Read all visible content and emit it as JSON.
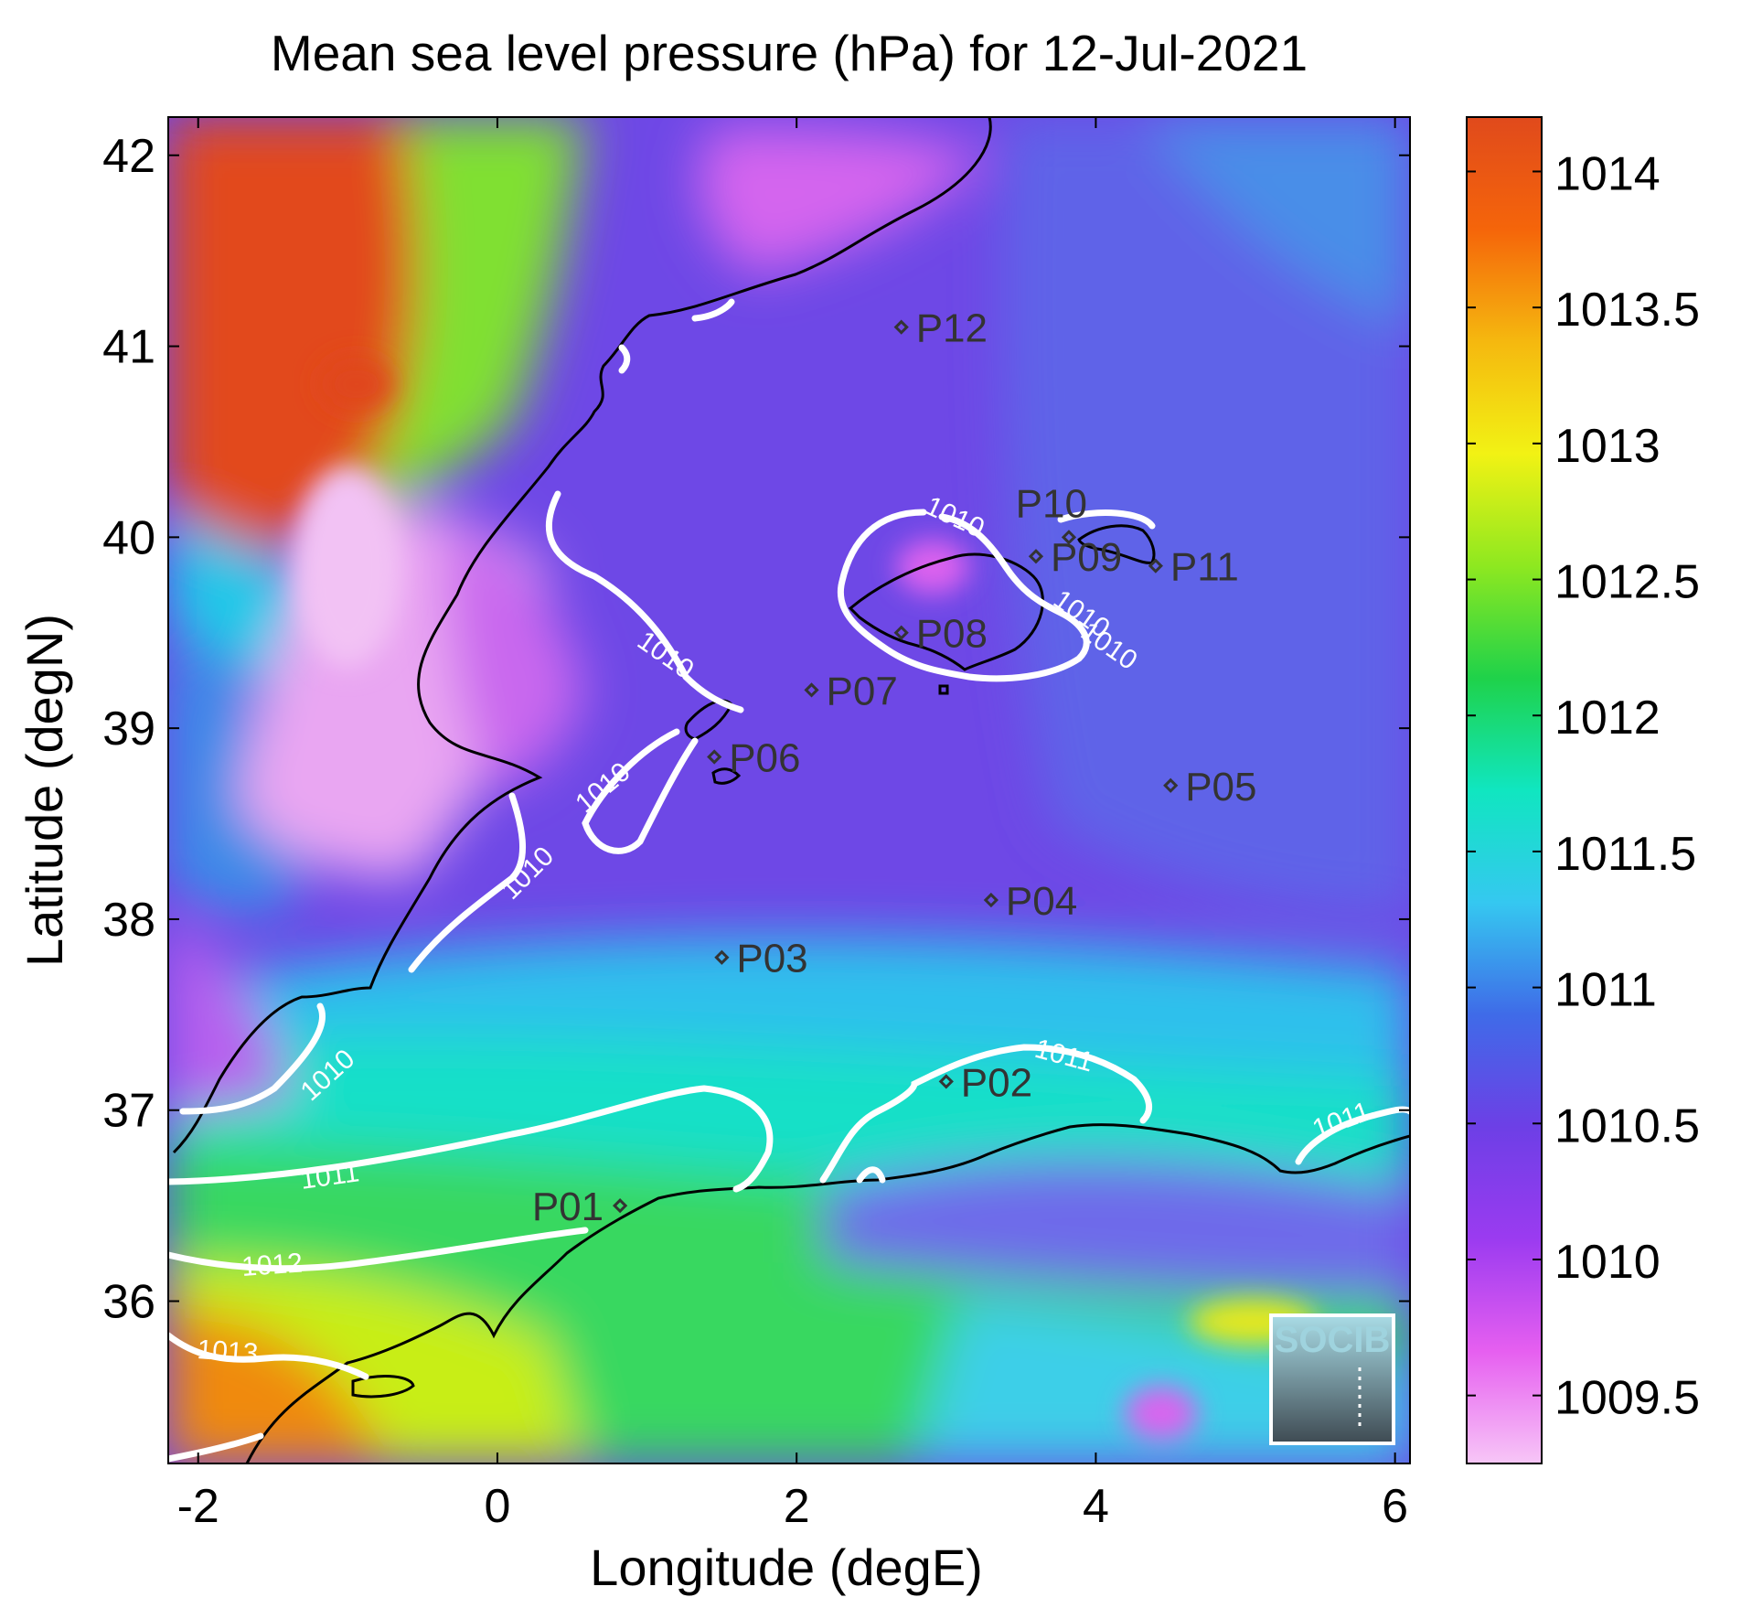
{
  "title": "Mean sea level pressure (hPa) for 12-Jul-2021",
  "axes": {
    "xlabel": "Longitude (degE)",
    "ylabel": "Latitude (degN)",
    "xlim": [
      -2.2,
      6.1
    ],
    "ylim": [
      35.15,
      42.2
    ],
    "xticks": [
      "-2",
      "0",
      "2",
      "4",
      "6"
    ],
    "yticks": [
      "42",
      "41",
      "40",
      "39",
      "38",
      "37",
      "36"
    ]
  },
  "colorbar": {
    "range": [
      1009.25,
      1014.2
    ],
    "ticks": [
      "1014",
      "1013.5",
      "1013",
      "1012.5",
      "1012",
      "1011.5",
      "1011",
      "1010.5",
      "1010",
      "1009.5"
    ],
    "colors": [
      "#f7c6f7",
      "#e65ff0",
      "#9b3bf0",
      "#6d3fe6",
      "#3f6be8",
      "#35c8f0",
      "#10e6c0",
      "#1fd24a",
      "#8ee820",
      "#f2f214",
      "#f5b80f",
      "#f5650a",
      "#e04a1c"
    ]
  },
  "stations": [
    {
      "name": "P01",
      "lon": 0.82,
      "lat": 36.5
    },
    {
      "name": "P02",
      "lon": 3.0,
      "lat": 37.15
    },
    {
      "name": "P03",
      "lon": 1.5,
      "lat": 37.8
    },
    {
      "name": "P04",
      "lon": 3.3,
      "lat": 38.1
    },
    {
      "name": "P05",
      "lon": 4.5,
      "lat": 38.7
    },
    {
      "name": "P06",
      "lon": 1.45,
      "lat": 38.85
    },
    {
      "name": "P07",
      "lon": 2.1,
      "lat": 39.2
    },
    {
      "name": "P08",
      "lon": 2.7,
      "lat": 39.5
    },
    {
      "name": "P09",
      "lon": 3.6,
      "lat": 39.9
    },
    {
      "name": "P10",
      "lon": 3.82,
      "lat": 40.0
    },
    {
      "name": "P11",
      "lon": 4.4,
      "lat": 39.85
    },
    {
      "name": "P12",
      "lon": 2.7,
      "lat": 41.1
    }
  ],
  "contour_labels": [
    "1010",
    "1010",
    "1010",
    "1010",
    "1010",
    "1010",
    "1010",
    "1011",
    "1011",
    "1011",
    "1012",
    "1013"
  ],
  "logo": "SOCIB"
}
